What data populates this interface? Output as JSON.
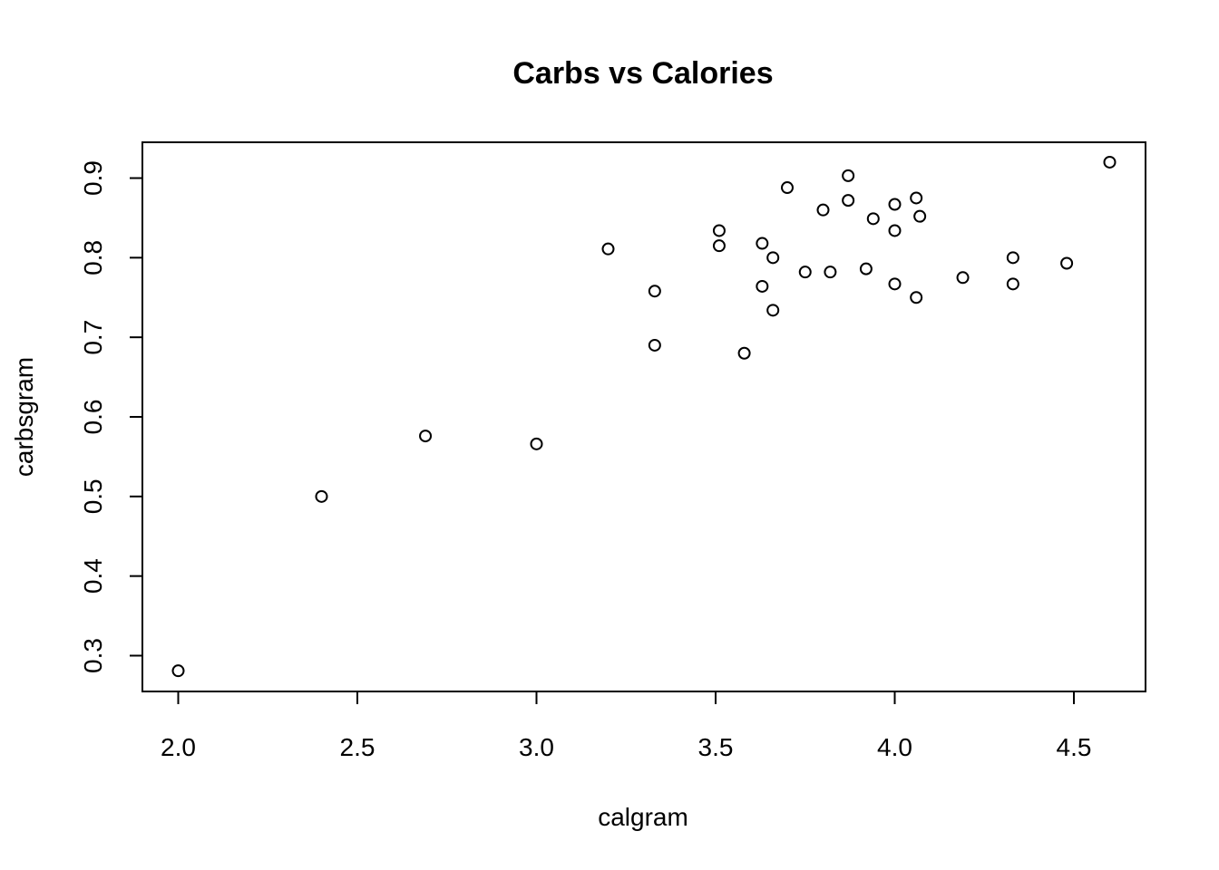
{
  "chart_data": {
    "type": "scatter",
    "title": "Carbs vs Calories",
    "xlabel": "calgram",
    "ylabel": "carbsgram",
    "xlim": [
      1.9,
      4.7
    ],
    "ylim": [
      0.255,
      0.945
    ],
    "x_ticks": [
      2.0,
      2.5,
      3.0,
      3.5,
      4.0,
      4.5
    ],
    "x_tick_labels": [
      "2.0",
      "2.5",
      "3.0",
      "3.5",
      "4.0",
      "4.5"
    ],
    "y_ticks": [
      0.3,
      0.4,
      0.5,
      0.6,
      0.7,
      0.8,
      0.9
    ],
    "y_tick_labels": [
      "0.3",
      "0.4",
      "0.5",
      "0.6",
      "0.7",
      "0.8",
      "0.9"
    ],
    "grid": false,
    "legend": "none",
    "points": [
      {
        "x": 2.0,
        "y": 0.281
      },
      {
        "x": 2.4,
        "y": 0.5
      },
      {
        "x": 2.69,
        "y": 0.576
      },
      {
        "x": 3.0,
        "y": 0.566
      },
      {
        "x": 3.2,
        "y": 0.811
      },
      {
        "x": 3.33,
        "y": 0.758
      },
      {
        "x": 3.33,
        "y": 0.69
      },
      {
        "x": 3.51,
        "y": 0.834
      },
      {
        "x": 3.51,
        "y": 0.815
      },
      {
        "x": 3.58,
        "y": 0.68
      },
      {
        "x": 3.63,
        "y": 0.818
      },
      {
        "x": 3.63,
        "y": 0.764
      },
      {
        "x": 3.66,
        "y": 0.8
      },
      {
        "x": 3.66,
        "y": 0.734
      },
      {
        "x": 3.7,
        "y": 0.888
      },
      {
        "x": 3.75,
        "y": 0.782
      },
      {
        "x": 3.8,
        "y": 0.86
      },
      {
        "x": 3.82,
        "y": 0.782
      },
      {
        "x": 3.87,
        "y": 0.903
      },
      {
        "x": 3.87,
        "y": 0.872
      },
      {
        "x": 3.92,
        "y": 0.786
      },
      {
        "x": 3.94,
        "y": 0.849
      },
      {
        "x": 4.0,
        "y": 0.867
      },
      {
        "x": 4.0,
        "y": 0.834
      },
      {
        "x": 4.0,
        "y": 0.767
      },
      {
        "x": 4.06,
        "y": 0.875
      },
      {
        "x": 4.06,
        "y": 0.75
      },
      {
        "x": 4.07,
        "y": 0.852
      },
      {
        "x": 4.19,
        "y": 0.775
      },
      {
        "x": 4.33,
        "y": 0.8
      },
      {
        "x": 4.33,
        "y": 0.767
      },
      {
        "x": 4.48,
        "y": 0.793
      },
      {
        "x": 4.6,
        "y": 0.92
      }
    ]
  }
}
